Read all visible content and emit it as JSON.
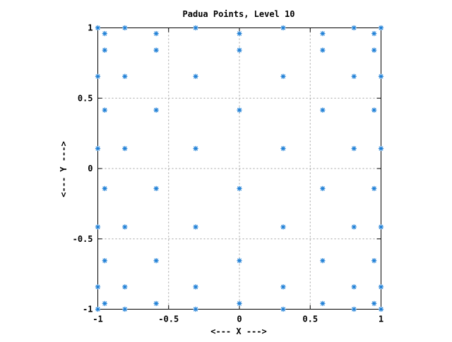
{
  "chart_data": {
    "type": "scatter",
    "title": "Padua Points, Level 10",
    "xlabel": "<--- X --->",
    "ylabel": "<--- Y --->",
    "xlim": [
      -1,
      1
    ],
    "ylim": [
      -1,
      1
    ],
    "xticks": [
      -1,
      -0.5,
      0,
      0.5,
      1
    ],
    "yticks": [
      -1,
      -0.5,
      0,
      0.5,
      1
    ],
    "xtick_labels": [
      "-1",
      "-0.5",
      "0",
      "0.5",
      "1"
    ],
    "ytick_labels": [
      "-1",
      "-0.5",
      "0",
      "0.5",
      "1"
    ],
    "grid": true,
    "marker": "asterisk",
    "marker_color": "#1e7fd6",
    "series": [
      {
        "points": [
          [
            -1,
            1
          ],
          [
            -1,
            0.6549
          ],
          [
            -1,
            0.1423
          ],
          [
            -1,
            -0.4154
          ],
          [
            -1,
            -0.8413
          ],
          [
            -1,
            -1
          ],
          [
            -0.9511,
            0.9595
          ],
          [
            -0.9511,
            0.8413
          ],
          [
            -0.9511,
            0.4154
          ],
          [
            -0.9511,
            -0.1423
          ],
          [
            -0.9511,
            -0.6549
          ],
          [
            -0.9511,
            -0.9595
          ],
          [
            -0.809,
            1
          ],
          [
            -0.809,
            0.6549
          ],
          [
            -0.809,
            0.1423
          ],
          [
            -0.809,
            -0.4154
          ],
          [
            -0.809,
            -0.8413
          ],
          [
            -0.809,
            -1
          ],
          [
            -0.5878,
            0.9595
          ],
          [
            -0.5878,
            0.8413
          ],
          [
            -0.5878,
            0.4154
          ],
          [
            -0.5878,
            -0.1423
          ],
          [
            -0.5878,
            -0.6549
          ],
          [
            -0.5878,
            -0.9595
          ],
          [
            -0.309,
            1
          ],
          [
            -0.309,
            0.6549
          ],
          [
            -0.309,
            0.1423
          ],
          [
            -0.309,
            -0.4154
          ],
          [
            -0.309,
            -0.8413
          ],
          [
            -0.309,
            -1
          ],
          [
            0,
            0.9595
          ],
          [
            0,
            0.8413
          ],
          [
            0,
            0.4154
          ],
          [
            0,
            -0.1423
          ],
          [
            0,
            -0.6549
          ],
          [
            0,
            -0.9595
          ],
          [
            0.309,
            1
          ],
          [
            0.309,
            0.6549
          ],
          [
            0.309,
            0.1423
          ],
          [
            0.309,
            -0.4154
          ],
          [
            0.309,
            -0.8413
          ],
          [
            0.309,
            -1
          ],
          [
            0.5878,
            0.9595
          ],
          [
            0.5878,
            0.8413
          ],
          [
            0.5878,
            0.4154
          ],
          [
            0.5878,
            -0.1423
          ],
          [
            0.5878,
            -0.6549
          ],
          [
            0.5878,
            -0.9595
          ],
          [
            0.809,
            1
          ],
          [
            0.809,
            0.6549
          ],
          [
            0.809,
            0.1423
          ],
          [
            0.809,
            -0.4154
          ],
          [
            0.809,
            -0.8413
          ],
          [
            0.809,
            -1
          ],
          [
            0.9511,
            0.9595
          ],
          [
            0.9511,
            0.8413
          ],
          [
            0.9511,
            0.4154
          ],
          [
            0.9511,
            -0.1423
          ],
          [
            0.9511,
            -0.6549
          ],
          [
            0.9511,
            -0.9595
          ],
          [
            1,
            1
          ],
          [
            1,
            0.6549
          ],
          [
            1,
            0.1423
          ],
          [
            1,
            -0.4154
          ],
          [
            1,
            -0.8413
          ],
          [
            1,
            -1
          ]
        ]
      }
    ]
  }
}
